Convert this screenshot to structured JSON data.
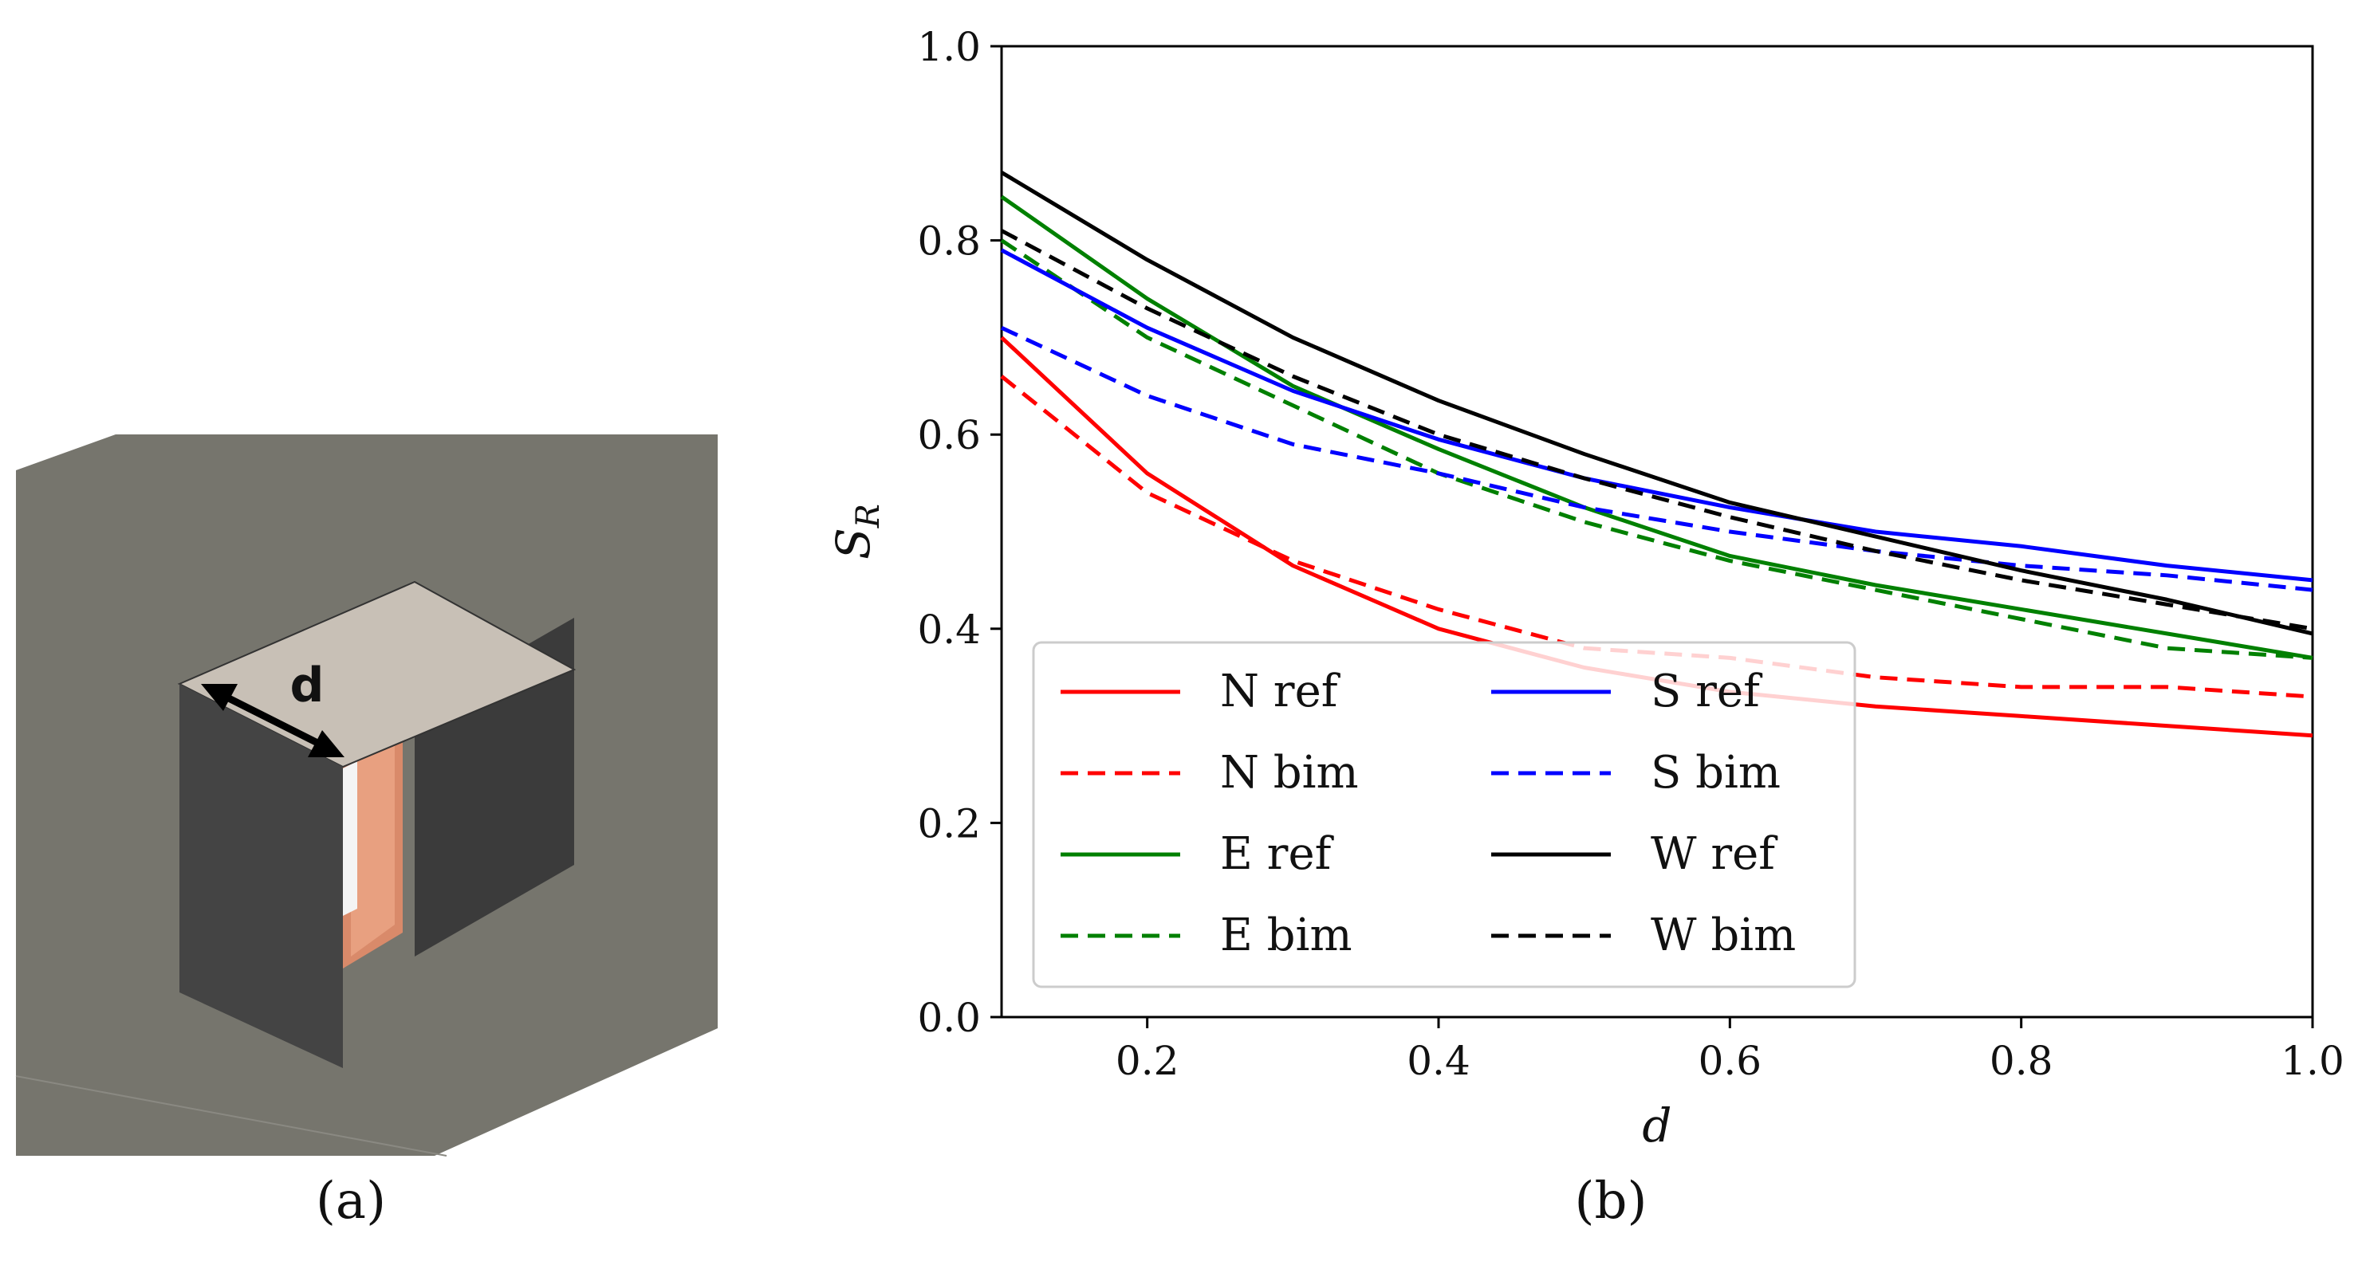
{
  "panels": {
    "a": {
      "label": "(a)",
      "illustration_text": "d"
    },
    "b": {
      "label": "(b)"
    }
  },
  "chart_data": {
    "type": "line",
    "title": "",
    "xlabel": "d",
    "ylabel": "S_R",
    "xlim": [
      0.1,
      1.0
    ],
    "ylim": [
      0.0,
      1.0
    ],
    "x_ticks": [
      "0.2",
      "0.4",
      "0.6",
      "0.8",
      "1.0"
    ],
    "y_ticks": [
      "0.0",
      "0.2",
      "0.4",
      "0.6",
      "0.8",
      "1.0"
    ],
    "grid": false,
    "legend_position": "lower-left",
    "x": [
      0.1,
      0.2,
      0.3,
      0.4,
      0.5,
      0.6,
      0.7,
      0.8,
      0.9,
      1.0
    ],
    "series": [
      {
        "name": "N ref",
        "color": "#ff0000",
        "dash": false,
        "values": [
          0.7,
          0.56,
          0.465,
          0.4,
          0.36,
          0.335,
          0.32,
          0.31,
          0.3,
          0.29
        ]
      },
      {
        "name": "N bim",
        "color": "#ff0000",
        "dash": true,
        "values": [
          0.66,
          0.54,
          0.47,
          0.42,
          0.38,
          0.37,
          0.35,
          0.34,
          0.34,
          0.33
        ]
      },
      {
        "name": "E ref",
        "color": "#008000",
        "dash": false,
        "values": [
          0.845,
          0.74,
          0.65,
          0.585,
          0.525,
          0.475,
          0.445,
          0.42,
          0.395,
          0.37
        ]
      },
      {
        "name": "E bim",
        "color": "#008000",
        "dash": true,
        "values": [
          0.8,
          0.7,
          0.63,
          0.56,
          0.51,
          0.47,
          0.44,
          0.41,
          0.38,
          0.37
        ]
      },
      {
        "name": "S ref",
        "color": "#0000ff",
        "dash": false,
        "values": [
          0.79,
          0.71,
          0.645,
          0.595,
          0.555,
          0.525,
          0.5,
          0.485,
          0.465,
          0.45
        ]
      },
      {
        "name": "S bim",
        "color": "#0000ff",
        "dash": true,
        "values": [
          0.71,
          0.64,
          0.59,
          0.56,
          0.525,
          0.5,
          0.48,
          0.465,
          0.455,
          0.44
        ]
      },
      {
        "name": "W ref",
        "color": "#000000",
        "dash": false,
        "values": [
          0.87,
          0.78,
          0.7,
          0.635,
          0.58,
          0.53,
          0.495,
          0.46,
          0.43,
          0.395
        ]
      },
      {
        "name": "W bim",
        "color": "#000000",
        "dash": true,
        "values": [
          0.81,
          0.73,
          0.66,
          0.6,
          0.555,
          0.515,
          0.48,
          0.45,
          0.425,
          0.4
        ]
      }
    ]
  }
}
